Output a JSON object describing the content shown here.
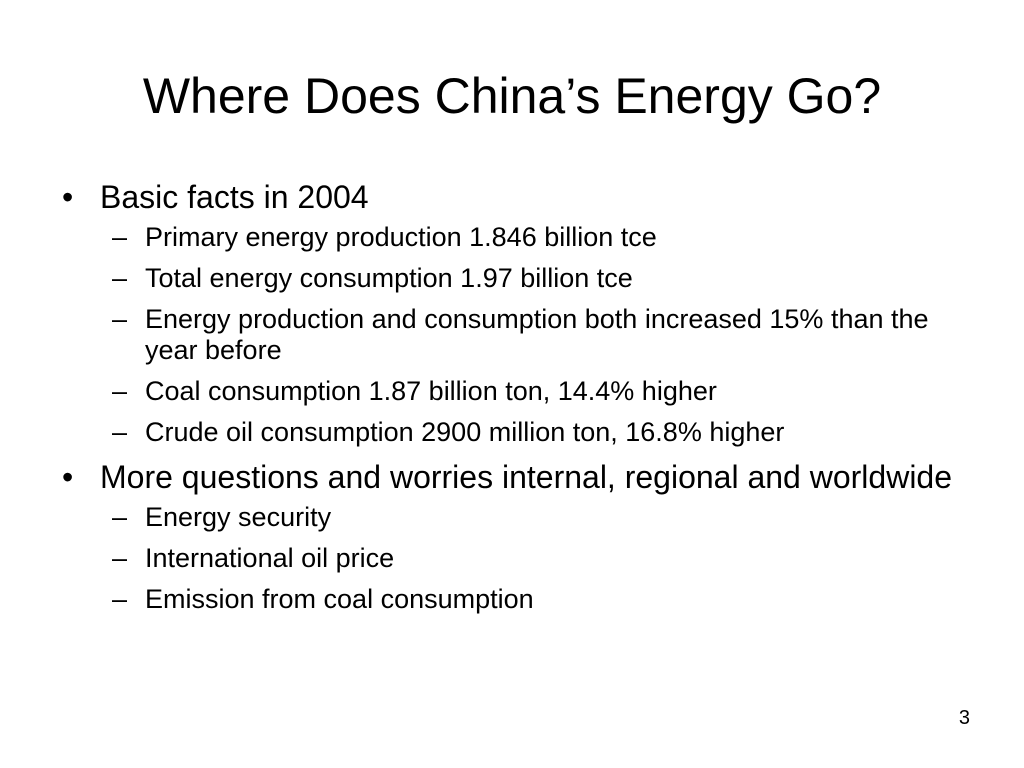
{
  "slide": {
    "title": "Where Does China’s Energy Go?",
    "page_number": "3",
    "bullet_glyph": "•",
    "sub_glyph": "–",
    "sections": [
      {
        "heading": "Basic facts in 2004",
        "items": [
          "Primary energy production  1.846 billion tce",
          "Total energy consumption  1.97 billion tce",
          "Energy production and consumption both increased 15% than the year before",
          "Coal consumption  1.87 billion ton, 14.4% higher",
          "Crude oil consumption 2900 million ton, 16.8% higher"
        ]
      },
      {
        "heading": "More questions and worries internal, regional and worldwide",
        "items": [
          "Energy security",
          "International oil price",
          "Emission from coal consumption"
        ]
      }
    ]
  }
}
